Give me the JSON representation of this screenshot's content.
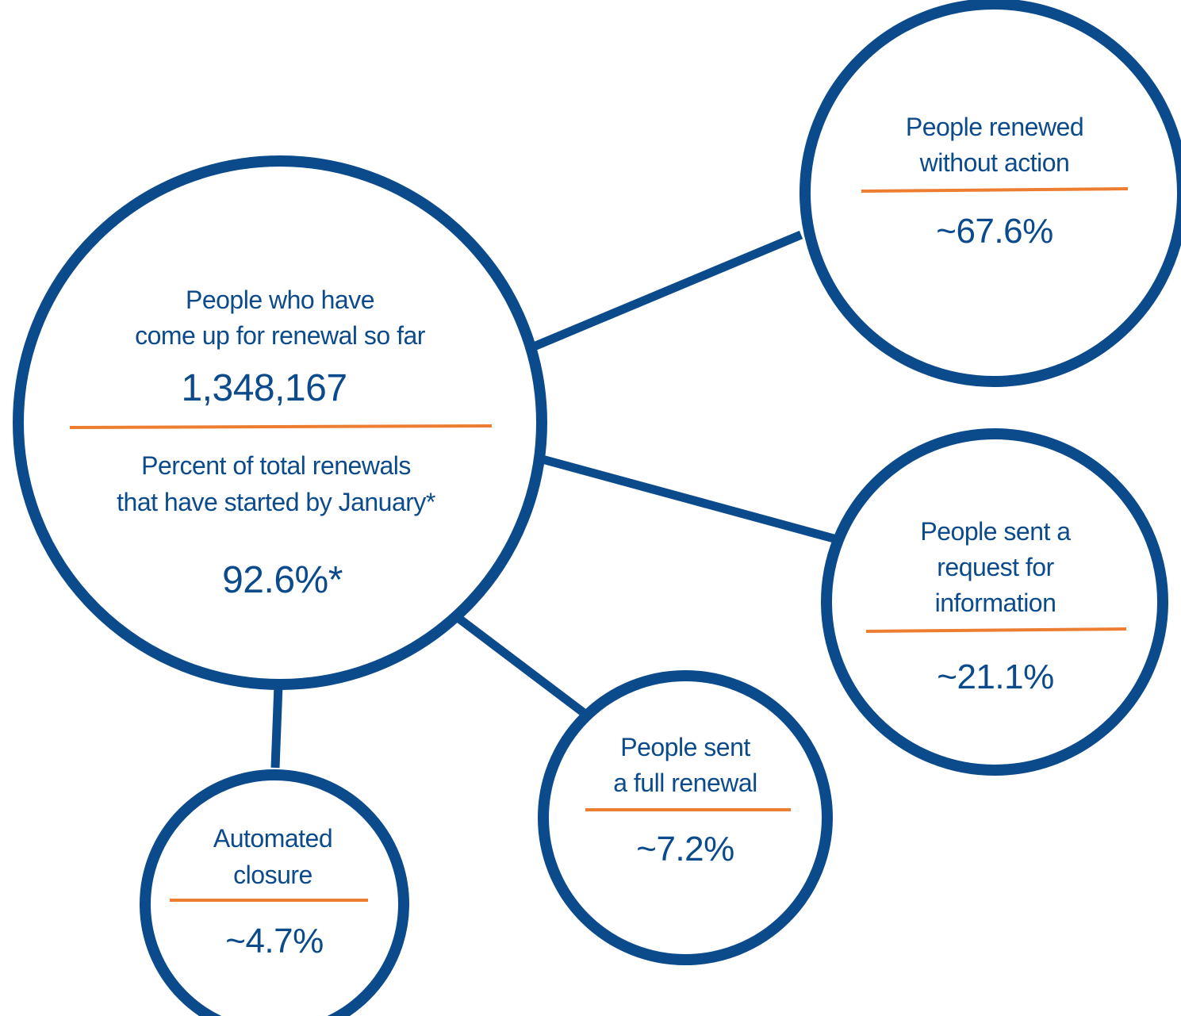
{
  "colors": {
    "circle_stroke": "#0b4a8b",
    "divider": "#ed7d31",
    "text": "#0b4a8b",
    "background": "#ffffff"
  },
  "hub": {
    "label_line1": "People who have",
    "label_line2": "come up for renewal so far",
    "count": "1,348,167",
    "pct_label_line1": "Percent of total renewals",
    "pct_label_line2": "that have started by January*",
    "pct_value": "92.6%*"
  },
  "renewed": {
    "label_line1": "People renewed",
    "label_line2": "without action",
    "value": "~67.6%"
  },
  "rfi": {
    "label_line1": "People sent a",
    "label_line2": "request for",
    "label_line3": "information",
    "value": "~21.1%"
  },
  "full_renewal": {
    "label_line1": "People sent",
    "label_line2": "a full renewal",
    "value": "~7.2%"
  },
  "closure": {
    "label_line1": "Automated",
    "label_line2": "closure",
    "value": "~4.7%"
  }
}
